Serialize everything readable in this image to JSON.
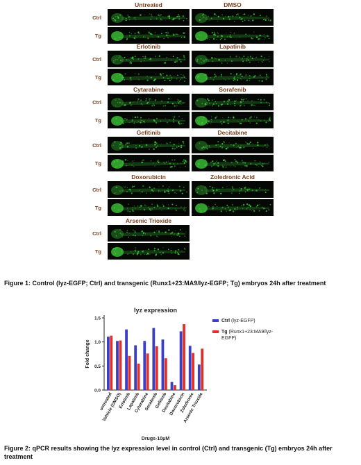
{
  "figure1": {
    "drugs": [
      "Untreated",
      "DMSO",
      "Erlotinib",
      "Lapatinib",
      "Cytarabine",
      "Sorafenib",
      "Gefitinib",
      "Decitabine",
      "Doxorubicin",
      "Zoledronic Acid",
      "Arsenic Trioxide"
    ],
    "row_labels": [
      "Ctrl",
      "Tg"
    ],
    "caption": "Figure 1: Control (lyz-EGFP; Ctrl) and transgenic (Runx1+23:MA9/lyz-EGFP; Tg) embryos 24h after treatment",
    "fluorescence_color": "#3fcf3a"
  },
  "chart_data": {
    "type": "bar",
    "title": "lyz expression",
    "xlabel": "Drugs-10μM",
    "ylabel": "Fold change",
    "ylim": [
      0,
      1.5
    ],
    "yticks": [
      "0.0",
      "0.5",
      "1.0",
      "1.5"
    ],
    "categories": [
      "untreated",
      "Vehicle (DMSO)",
      "Erlotinib",
      "Lapatinib",
      "Cytarabine",
      "Sorafenib",
      "Gefitinib",
      "Decitabine",
      "Doxorubicin",
      "Zoledronic",
      "Arsenic Trioxide"
    ],
    "series": [
      {
        "name": "Ctrl",
        "name_suffix": "(lyz-EGFP)",
        "color": "#3a3fc4",
        "values": [
          1.11,
          1.02,
          1.26,
          0.93,
          1.02,
          1.29,
          1.05,
          0.17,
          1.22,
          0.92,
          0.53
        ]
      },
      {
        "name": "Tg",
        "name_suffix": "(Runx1+23:MA9/lyz-EGFP)",
        "color": "#e0302a",
        "values": [
          1.13,
          1.03,
          0.71,
          0.55,
          0.76,
          0.91,
          0.66,
          0.1,
          1.37,
          0.77,
          0.86
        ]
      }
    ],
    "grid": false,
    "legend_placement": "right"
  },
  "figure2": {
    "caption": "Figure 2: qPCR results showing the lyz expression level in control (Ctrl) and transgenic (Tg) embryos 24h after treatment"
  }
}
